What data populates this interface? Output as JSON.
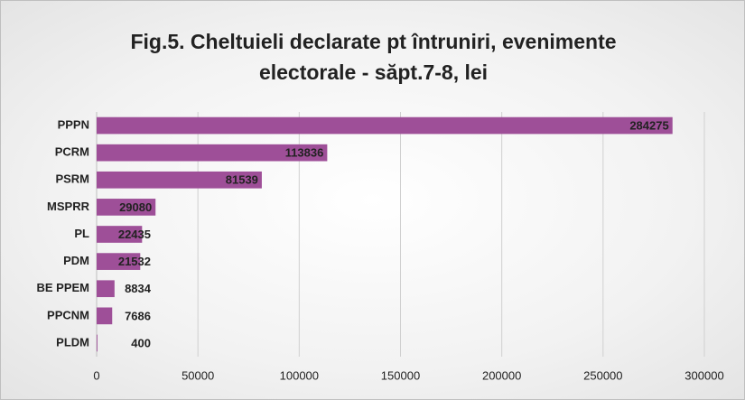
{
  "chart_data": {
    "type": "bar",
    "orientation": "horizontal",
    "title": "Fig.5. Cheltuieli declarate pt întruniri, evenimente electorale - săpt.7-8, lei",
    "categories": [
      "PPPN",
      "PCRM",
      "PSRM",
      "MSPRR",
      "PL",
      "PDM",
      "BE PPEM",
      "PPCNM",
      "PLDM"
    ],
    "values": [
      284275,
      113836,
      81539,
      29080,
      22435,
      21532,
      8834,
      7686,
      400
    ],
    "color": "#9e4f98",
    "xlim": [
      0,
      300000
    ],
    "xticks": [
      0,
      50000,
      100000,
      150000,
      200000,
      250000,
      300000
    ],
    "grid": true
  }
}
